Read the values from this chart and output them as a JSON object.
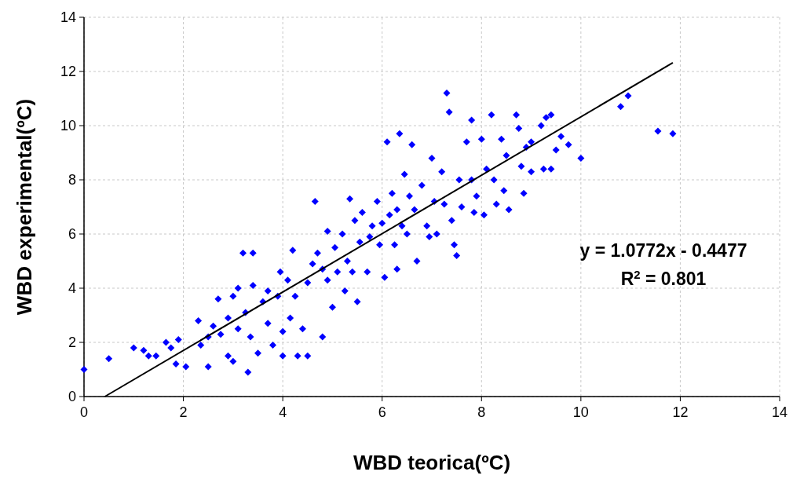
{
  "chart_data": {
    "type": "scatter",
    "xlabel": "WBD teorica(ºC)",
    "ylabel": "WBD experimental(ºC)",
    "xlim": [
      0,
      14
    ],
    "ylim": [
      0,
      14
    ],
    "xticks": [
      0,
      2,
      4,
      6,
      8,
      10,
      12,
      14
    ],
    "yticks": [
      0,
      2,
      4,
      6,
      8,
      10,
      12,
      14
    ],
    "grid": true,
    "marker": "diamond",
    "annotations": [
      "y = 1.0772x - 0.4477",
      "R$^{2}$ = 0.801"
    ],
    "series": [
      {
        "color": "#0000ff",
        "x": [
          0,
          0.5,
          1.0,
          1.2,
          1.3,
          1.45,
          1.65,
          1.75,
          1.85,
          1.9,
          2.05,
          2.3,
          2.35,
          2.5,
          2.5,
          2.6,
          2.7,
          2.75,
          2.9,
          2.9,
          3.0,
          3.0,
          3.1,
          3.1,
          3.2,
          3.25,
          3.3,
          3.35,
          3.4,
          3.4,
          3.5,
          3.6,
          3.7,
          3.7,
          3.8,
          3.9,
          3.95,
          4.0,
          4.0,
          4.1,
          4.15,
          4.2,
          4.25,
          4.3,
          4.4,
          4.5,
          4.5,
          4.6,
          4.65,
          4.7,
          4.8,
          4.8,
          4.9,
          4.9,
          5.0,
          5.05,
          5.1,
          5.2,
          5.25,
          5.3,
          5.35,
          5.4,
          5.45,
          5.5,
          5.55,
          5.6,
          5.7,
          5.75,
          5.8,
          5.9,
          5.95,
          6.0,
          6.05,
          6.1,
          6.15,
          6.2,
          6.25,
          6.3,
          6.3,
          6.35,
          6.4,
          6.45,
          6.5,
          6.55,
          6.6,
          6.65,
          6.7,
          6.8,
          6.9,
          6.95,
          7.0,
          7.05,
          7.1,
          7.2,
          7.25,
          7.3,
          7.35,
          7.4,
          7.45,
          7.5,
          7.55,
          7.6,
          7.7,
          7.8,
          7.8,
          7.85,
          7.9,
          8.0,
          8.05,
          8.1,
          8.2,
          8.25,
          8.3,
          8.4,
          8.45,
          8.5,
          8.55,
          8.7,
          8.75,
          8.8,
          8.85,
          8.9,
          9.0,
          9.0,
          9.2,
          9.25,
          9.3,
          9.4,
          9.4,
          9.5,
          9.6,
          9.75,
          10.0,
          10.8,
          10.95,
          11.55,
          11.85
        ],
        "values": [
          1.0,
          1.4,
          1.8,
          1.7,
          1.5,
          1.5,
          2.0,
          1.8,
          1.2,
          2.1,
          1.1,
          2.8,
          1.9,
          1.1,
          2.2,
          2.6,
          3.6,
          2.3,
          1.5,
          2.9,
          1.3,
          3.7,
          4.0,
          2.5,
          5.3,
          3.1,
          0.9,
          2.2,
          5.3,
          4.1,
          1.6,
          3.5,
          2.7,
          3.9,
          1.9,
          3.7,
          4.6,
          2.4,
          1.5,
          4.3,
          2.9,
          5.4,
          3.7,
          1.5,
          2.5,
          1.5,
          4.2,
          4.9,
          7.2,
          5.3,
          4.7,
          2.2,
          6.1,
          4.3,
          3.3,
          5.5,
          4.6,
          6.0,
          3.9,
          5.0,
          7.3,
          4.6,
          6.5,
          3.5,
          5.7,
          6.8,
          4.6,
          5.9,
          6.3,
          7.2,
          5.6,
          6.4,
          4.4,
          9.4,
          6.7,
          7.5,
          5.6,
          6.9,
          4.7,
          9.7,
          6.3,
          8.2,
          6.0,
          7.4,
          9.3,
          6.9,
          5.0,
          7.8,
          6.3,
          5.9,
          8.8,
          7.2,
          6.0,
          8.3,
          7.1,
          11.2,
          10.5,
          6.5,
          5.6,
          5.2,
          8.0,
          7.0,
          9.4,
          8.0,
          10.2,
          6.8,
          7.4,
          9.5,
          6.7,
          8.4,
          10.4,
          8.0,
          7.1,
          9.5,
          7.6,
          8.9,
          6.9,
          10.4,
          9.9,
          8.5,
          7.5,
          9.2,
          9.4,
          8.3,
          10.0,
          8.4,
          10.3,
          8.4,
          10.4,
          9.1,
          9.6,
          9.3,
          8.8,
          10.7,
          11.1,
          9.8,
          9.7
        ]
      },
      {
        "type": "line",
        "color": "#000000",
        "marker": "none",
        "x": [
          0.42,
          11.85
        ],
        "values": [
          0,
          12.32
        ]
      }
    ]
  }
}
